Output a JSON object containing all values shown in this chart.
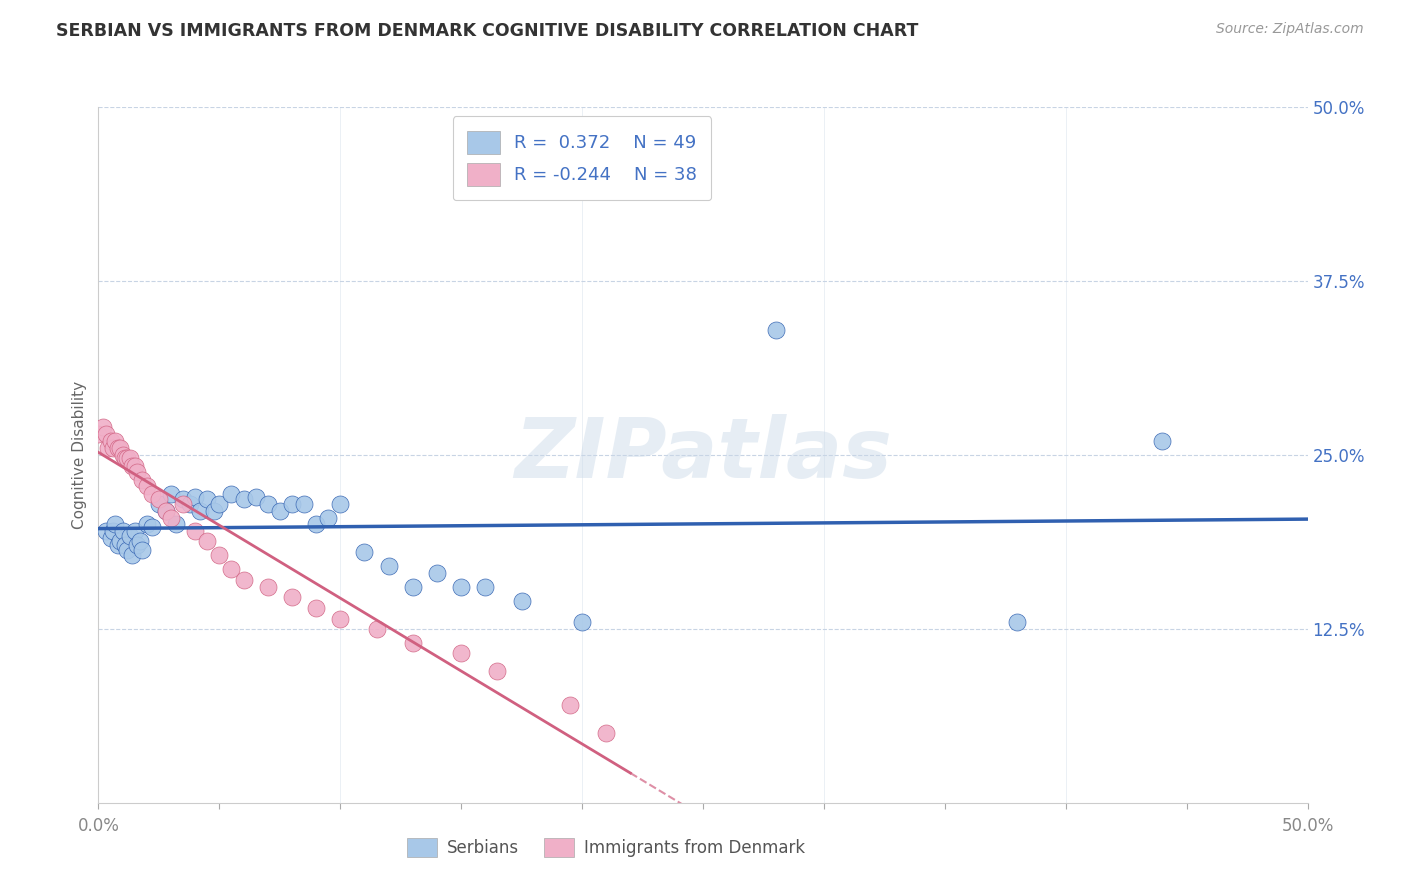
{
  "title": "SERBIAN VS IMMIGRANTS FROM DENMARK COGNITIVE DISABILITY CORRELATION CHART",
  "source": "Source: ZipAtlas.com",
  "ylabel": "Cognitive Disability",
  "xlim": [
    0.0,
    0.5
  ],
  "ylim": [
    0.0,
    0.5
  ],
  "xtick_labels": [
    "0.0%",
    "",
    "",
    "",
    "",
    "",
    "",
    "",
    "",
    "",
    "50.0%"
  ],
  "ytick_labels_right": [
    "50.0%",
    "37.5%",
    "25.0%",
    "12.5%",
    ""
  ],
  "ytick_positions_right": [
    0.5,
    0.375,
    0.25,
    0.125,
    0.0
  ],
  "color_serbian": "#a8c8e8",
  "color_denmark": "#f0b0c8",
  "color_line_serbian": "#3060b0",
  "color_line_denmark": "#d06080",
  "serbian_scatter": [
    [
      0.003,
      0.195
    ],
    [
      0.005,
      0.19
    ],
    [
      0.006,
      0.195
    ],
    [
      0.007,
      0.2
    ],
    [
      0.008,
      0.185
    ],
    [
      0.009,
      0.188
    ],
    [
      0.01,
      0.195
    ],
    [
      0.011,
      0.185
    ],
    [
      0.012,
      0.182
    ],
    [
      0.013,
      0.192
    ],
    [
      0.014,
      0.178
    ],
    [
      0.015,
      0.195
    ],
    [
      0.016,
      0.185
    ],
    [
      0.017,
      0.188
    ],
    [
      0.018,
      0.182
    ],
    [
      0.02,
      0.2
    ],
    [
      0.022,
      0.198
    ],
    [
      0.025,
      0.215
    ],
    [
      0.028,
      0.21
    ],
    [
      0.03,
      0.222
    ],
    [
      0.032,
      0.2
    ],
    [
      0.035,
      0.218
    ],
    [
      0.038,
      0.215
    ],
    [
      0.04,
      0.22
    ],
    [
      0.042,
      0.21
    ],
    [
      0.045,
      0.218
    ],
    [
      0.048,
      0.21
    ],
    [
      0.05,
      0.215
    ],
    [
      0.055,
      0.222
    ],
    [
      0.06,
      0.218
    ],
    [
      0.065,
      0.22
    ],
    [
      0.07,
      0.215
    ],
    [
      0.075,
      0.21
    ],
    [
      0.08,
      0.215
    ],
    [
      0.085,
      0.215
    ],
    [
      0.09,
      0.2
    ],
    [
      0.095,
      0.205
    ],
    [
      0.1,
      0.215
    ],
    [
      0.11,
      0.18
    ],
    [
      0.12,
      0.17
    ],
    [
      0.13,
      0.155
    ],
    [
      0.14,
      0.165
    ],
    [
      0.15,
      0.155
    ],
    [
      0.16,
      0.155
    ],
    [
      0.175,
      0.145
    ],
    [
      0.2,
      0.13
    ],
    [
      0.28,
      0.34
    ],
    [
      0.38,
      0.13
    ],
    [
      0.44,
      0.26
    ]
  ],
  "denmark_scatter": [
    [
      0.0,
      0.265
    ],
    [
      0.002,
      0.27
    ],
    [
      0.003,
      0.265
    ],
    [
      0.004,
      0.255
    ],
    [
      0.005,
      0.26
    ],
    [
      0.006,
      0.255
    ],
    [
      0.007,
      0.26
    ],
    [
      0.008,
      0.255
    ],
    [
      0.009,
      0.255
    ],
    [
      0.01,
      0.25
    ],
    [
      0.011,
      0.248
    ],
    [
      0.012,
      0.248
    ],
    [
      0.013,
      0.248
    ],
    [
      0.014,
      0.242
    ],
    [
      0.015,
      0.242
    ],
    [
      0.016,
      0.238
    ],
    [
      0.018,
      0.232
    ],
    [
      0.02,
      0.228
    ],
    [
      0.022,
      0.222
    ],
    [
      0.025,
      0.218
    ],
    [
      0.028,
      0.21
    ],
    [
      0.03,
      0.205
    ],
    [
      0.035,
      0.215
    ],
    [
      0.04,
      0.195
    ],
    [
      0.045,
      0.188
    ],
    [
      0.05,
      0.178
    ],
    [
      0.055,
      0.168
    ],
    [
      0.06,
      0.16
    ],
    [
      0.07,
      0.155
    ],
    [
      0.08,
      0.148
    ],
    [
      0.09,
      0.14
    ],
    [
      0.1,
      0.132
    ],
    [
      0.115,
      0.125
    ],
    [
      0.13,
      0.115
    ],
    [
      0.15,
      0.108
    ],
    [
      0.165,
      0.095
    ],
    [
      0.195,
      0.07
    ],
    [
      0.21,
      0.05
    ]
  ],
  "watermark": "ZIPatlas",
  "background_color": "#ffffff",
  "grid_color": "#c8d4e4",
  "tick_color": "#4472c4",
  "axis_text_color": "#888888"
}
